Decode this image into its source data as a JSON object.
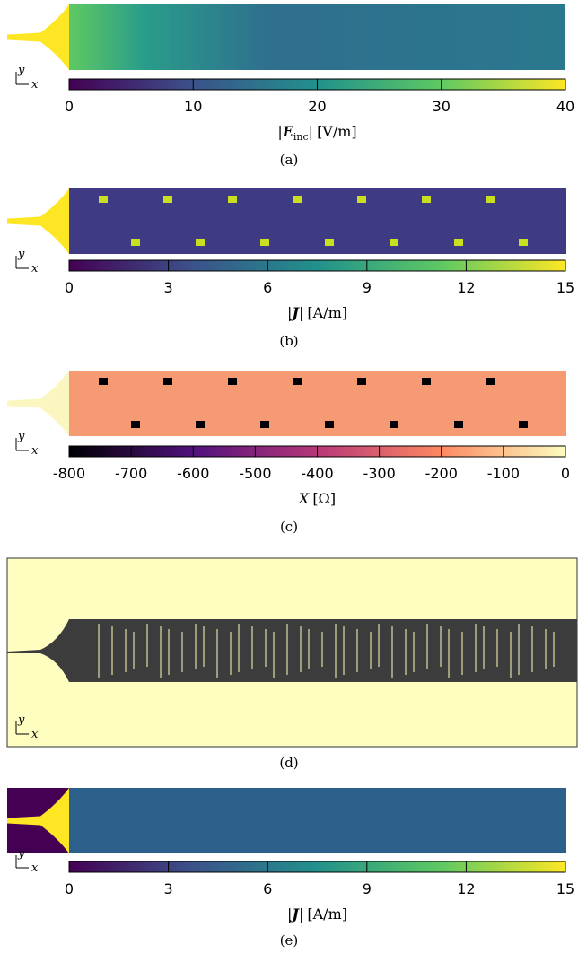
{
  "axes": {
    "x": "x",
    "y": "y"
  },
  "panels": [
    {
      "caption": "(a)",
      "colorbar": {
        "ticks": [
          0,
          10,
          20,
          30,
          40
        ],
        "prefix": "|",
        "symbol": "E",
        "subscript": "inc",
        "suffix": "|",
        "unit": "[V/m]"
      }
    },
    {
      "caption": "(b)",
      "colorbar": {
        "ticks": [
          0,
          3,
          6,
          9,
          12,
          15
        ],
        "prefix": "|",
        "symbol": "J",
        "suffix": "|",
        "unit": "[A/m]"
      }
    },
    {
      "caption": "(c)",
      "colorbar": {
        "ticks": [
          -800,
          -700,
          -600,
          -500,
          -400,
          -300,
          -200,
          -100,
          0
        ],
        "symbol": "X",
        "unit": "[Ω]"
      }
    },
    {
      "caption": "(d)"
    },
    {
      "caption": "(e)",
      "colorbar": {
        "ticks": [
          0,
          3,
          6,
          9,
          12,
          15
        ],
        "prefix": "|",
        "symbol": "J",
        "suffix": "|",
        "unit": "[A/m]"
      }
    }
  ]
}
